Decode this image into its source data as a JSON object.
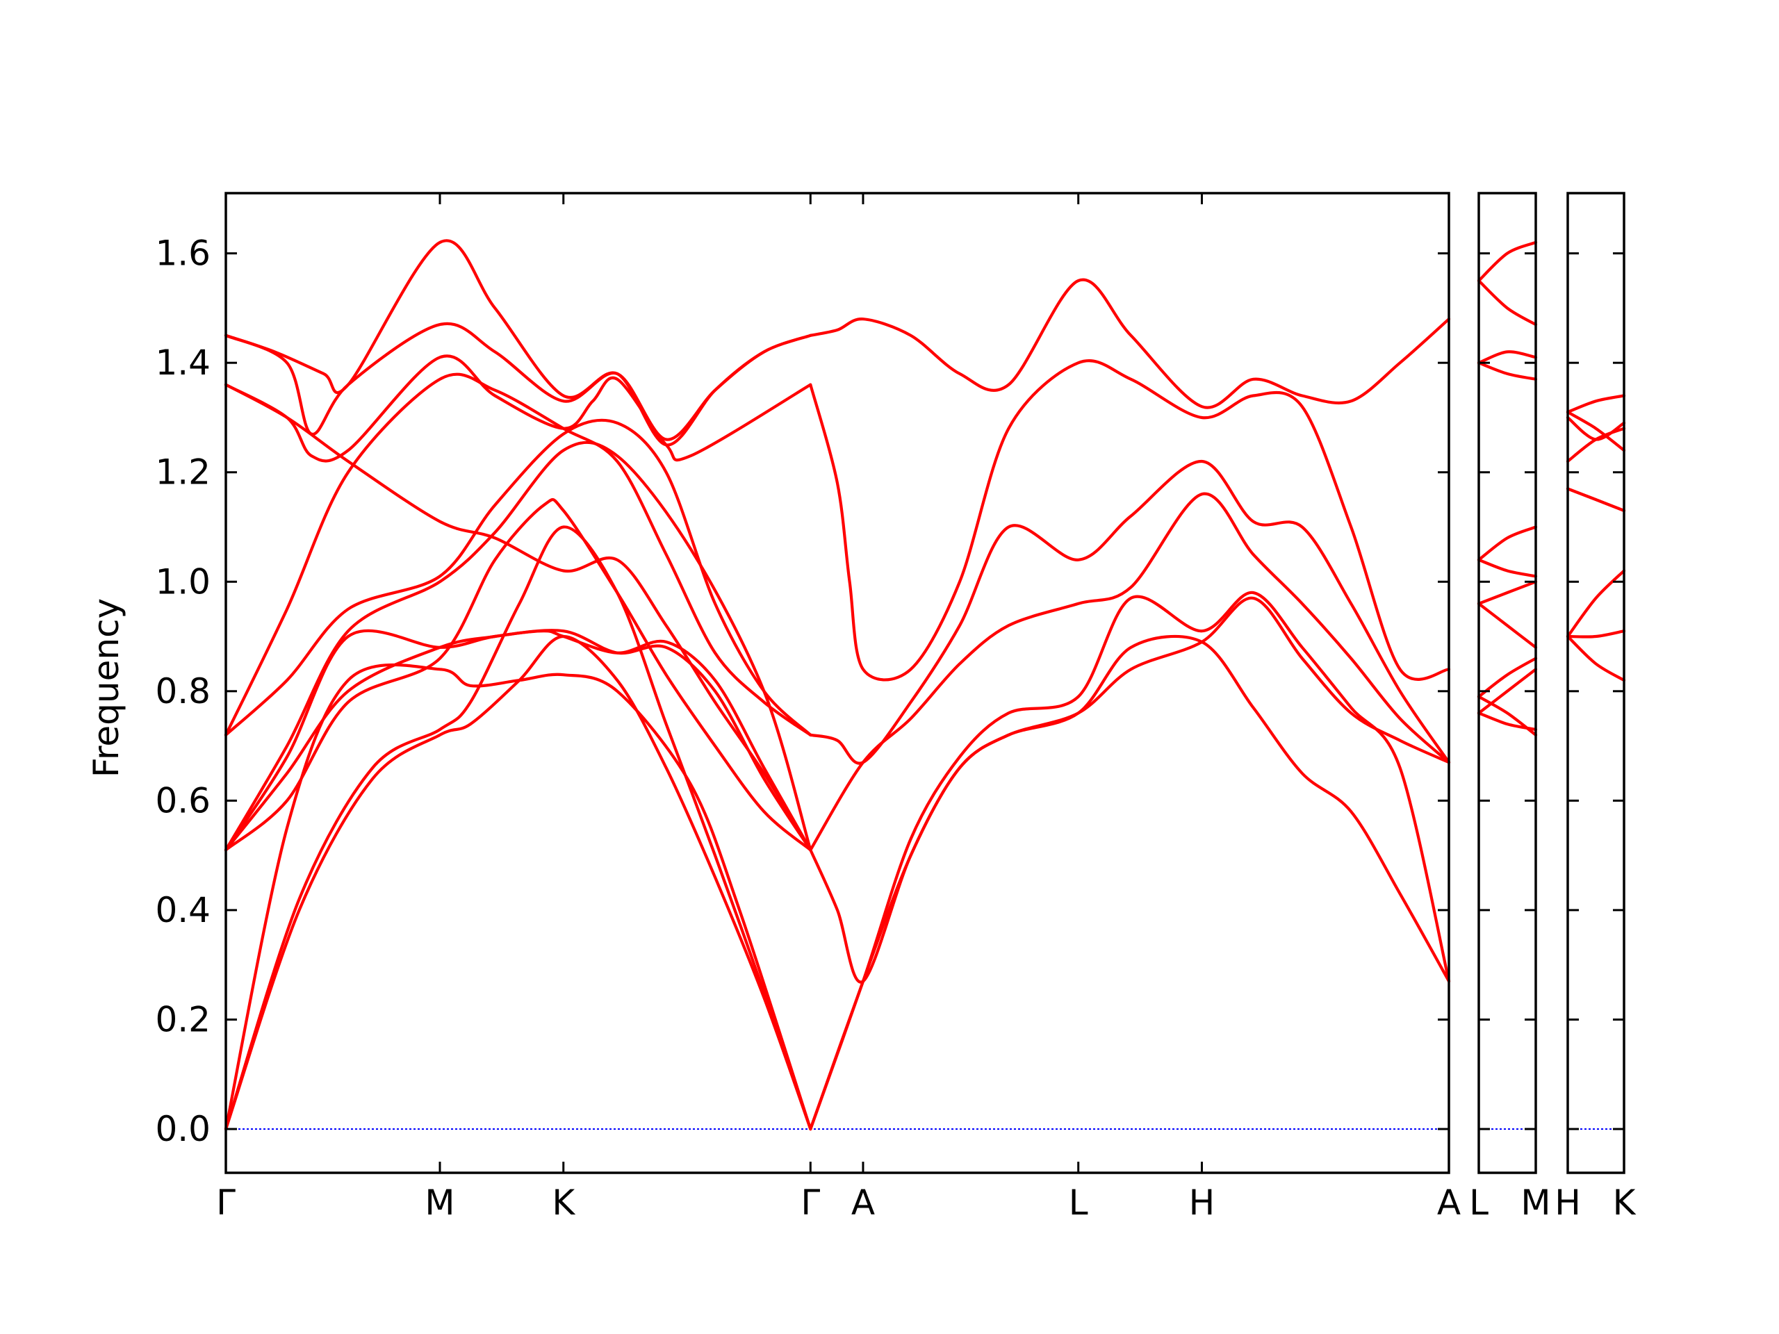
{
  "chart_data": {
    "type": "line",
    "ylabel": "Frequency",
    "xlabel": "",
    "ylim": [
      -0.08,
      1.71
    ],
    "yticks": [
      "0.0",
      "0.2",
      "0.4",
      "0.6",
      "0.8",
      "1.0",
      "1.2",
      "1.4",
      "1.6"
    ],
    "ytick_values": [
      0.0,
      0.2,
      0.4,
      0.6,
      0.8,
      1.0,
      1.2,
      1.4,
      1.6
    ],
    "grid": false,
    "colors": {
      "bands": "#ff0000",
      "zero_line": "#0000ff",
      "axes": "#000000"
    },
    "panels": [
      {
        "id": "main",
        "xlim": [
          0,
          1
        ],
        "tick_labels": [
          "Γ",
          "M",
          "K",
          "Γ",
          "A",
          "L",
          "H",
          "A"
        ],
        "tick_positions": [
          0.0,
          0.175,
          0.276,
          0.478,
          0.521,
          0.697,
          0.798,
          1.0
        ],
        "series": [
          {
            "x": [
              0,
              0.06,
              0.12,
              0.175,
              0.2,
              0.24,
              0.276,
              0.32,
              0.36,
              0.4,
              0.44,
              0.478
            ],
            "y": [
              0.0,
              0.4,
              0.64,
              0.72,
              0.74,
              0.82,
              0.9,
              0.82,
              0.66,
              0.46,
              0.24,
              0.0
            ]
          },
          {
            "x": [
              0,
              0.06,
              0.12,
              0.175,
              0.2,
              0.24,
              0.276,
              0.32,
              0.36,
              0.4,
              0.44,
              0.478
            ],
            "y": [
              0.0,
              0.42,
              0.66,
              0.73,
              0.78,
              0.96,
              1.1,
              0.98,
              0.74,
              0.5,
              0.25,
              0.0
            ]
          },
          {
            "x": [
              0,
              0.05,
              0.1,
              0.175,
              0.2,
              0.24,
              0.276,
              0.32,
              0.38,
              0.42,
              0.478
            ],
            "y": [
              0.0,
              0.55,
              0.82,
              0.84,
              0.81,
              0.82,
              0.83,
              0.8,
              0.63,
              0.4,
              0.0
            ]
          },
          {
            "x": [
              0,
              0.05,
              0.1,
              0.175,
              0.22,
              0.26,
              0.276,
              0.32,
              0.36,
              0.4,
              0.44,
              0.478
            ],
            "y": [
              0.51,
              0.6,
              0.78,
              0.86,
              1.04,
              1.14,
              1.13,
              0.98,
              0.83,
              0.7,
              0.58,
              0.51
            ]
          },
          {
            "x": [
              0,
              0.05,
              0.1,
              0.175,
              0.22,
              0.26,
              0.276,
              0.32,
              0.36,
              0.4,
              0.44,
              0.478
            ],
            "y": [
              0.51,
              0.65,
              0.8,
              0.88,
              0.9,
              0.91,
              0.9,
              0.87,
              0.89,
              0.82,
              0.66,
              0.51
            ]
          },
          {
            "x": [
              0,
              0.05,
              0.1,
              0.175,
              0.22,
              0.276,
              0.32,
              0.36,
              0.4,
              0.44,
              0.478
            ],
            "y": [
              0.51,
              0.68,
              0.9,
              0.88,
              0.9,
              0.91,
              0.87,
              0.88,
              0.8,
              0.64,
              0.51
            ]
          },
          {
            "x": [
              0,
              0.05,
              0.1,
              0.175,
              0.22,
              0.276,
              0.32,
              0.38,
              0.44,
              0.478
            ],
            "y": [
              0.51,
              0.7,
              0.91,
              1.0,
              1.09,
              1.24,
              1.23,
              1.06,
              0.8,
              0.51
            ]
          },
          {
            "x": [
              0,
              0.05,
              0.1,
              0.175,
              0.22,
              0.276,
              0.32,
              0.36,
              0.4,
              0.44,
              0.478
            ],
            "y": [
              0.72,
              0.82,
              0.95,
              1.01,
              1.14,
              1.27,
              1.29,
              1.2,
              0.96,
              0.8,
              0.72
            ]
          },
          {
            "x": [
              0,
              0.05,
              0.1,
              0.175,
              0.22,
              0.276,
              0.32,
              0.36,
              0.4,
              0.44,
              0.478
            ],
            "y": [
              0.72,
              0.95,
              1.2,
              1.37,
              1.35,
              1.28,
              1.22,
              1.05,
              0.87,
              0.78,
              0.72
            ]
          },
          {
            "x": [
              0,
              0.05,
              0.1,
              0.175,
              0.22,
              0.276,
              0.32,
              0.36,
              0.4,
              0.44,
              0.478
            ],
            "y": [
              1.36,
              1.3,
              1.22,
              1.11,
              1.08,
              1.02,
              1.04,
              0.92,
              0.78,
              0.65,
              0.51
            ]
          },
          {
            "x": [
              0,
              0.05,
              0.07,
              0.1,
              0.175,
              0.22,
              0.276,
              0.3,
              0.32,
              0.36,
              0.38,
              0.478
            ],
            "y": [
              1.36,
              1.3,
              1.23,
              1.24,
              1.41,
              1.34,
              1.28,
              1.33,
              1.37,
              1.25,
              1.23,
              1.36
            ]
          },
          {
            "x": [
              0,
              0.05,
              0.07,
              0.1,
              0.175,
              0.22,
              0.276,
              0.32,
              0.36,
              0.4,
              0.44,
              0.478
            ],
            "y": [
              1.45,
              1.4,
              1.27,
              1.36,
              1.47,
              1.42,
              1.33,
              1.38,
              1.26,
              1.35,
              1.42,
              1.45
            ]
          },
          {
            "x": [
              0,
              0.04,
              0.08,
              0.1,
              0.175,
              0.22,
              0.276,
              0.32,
              0.36,
              0.4,
              0.44,
              0.478
            ],
            "y": [
              1.45,
              1.42,
              1.38,
              1.36,
              1.62,
              1.5,
              1.34,
              1.38,
              1.25,
              1.35,
              1.42,
              1.45
            ]
          },
          {
            "x": [
              0.478,
              0.521,
              0.56,
              0.6,
              0.64,
              0.697,
              0.74,
              0.798,
              0.84,
              0.88,
              0.92,
              0.96,
              1.0
            ],
            "y": [
              0.0,
              0.27,
              0.5,
              0.66,
              0.72,
              0.76,
              0.88,
              0.89,
              0.77,
              0.65,
              0.58,
              0.43,
              0.27
            ]
          },
          {
            "x": [
              0.478,
              0.521,
              0.56,
              0.6,
              0.64,
              0.697,
              0.74,
              0.798,
              0.84,
              0.88,
              0.92,
              0.96,
              1.0
            ],
            "y": [
              0.0,
              0.27,
              0.53,
              0.68,
              0.76,
              0.79,
              0.97,
              0.91,
              0.98,
              0.88,
              0.77,
              0.66,
              0.27
            ]
          },
          {
            "x": [
              0.478,
              0.5,
              0.521,
              0.56,
              0.6,
              0.64,
              0.697,
              0.74,
              0.798,
              0.84,
              0.88,
              0.92,
              0.96,
              1.0
            ],
            "y": [
              0.51,
              0.4,
              0.27,
              0.5,
              0.66,
              0.72,
              0.76,
              0.84,
              0.89,
              0.97,
              0.86,
              0.76,
              0.71,
              0.67
            ]
          },
          {
            "x": [
              0.478,
              0.521,
              0.56,
              0.6,
              0.64,
              0.697,
              0.74,
              0.798,
              0.84,
              0.88,
              0.92,
              0.96,
              1.0
            ],
            "y": [
              0.51,
              0.67,
              0.75,
              0.85,
              0.92,
              0.96,
              0.99,
              1.16,
              1.05,
              0.96,
              0.86,
              0.75,
              0.67
            ]
          },
          {
            "x": [
              0.478,
              0.5,
              0.521,
              0.56,
              0.6,
              0.64,
              0.697,
              0.74,
              0.798,
              0.84,
              0.88,
              0.92,
              0.96,
              1.0
            ],
            "y": [
              0.72,
              0.71,
              0.67,
              0.78,
              0.92,
              1.1,
              1.04,
              1.12,
              1.22,
              1.11,
              1.1,
              0.96,
              0.8,
              0.67
            ]
          },
          {
            "x": [
              0.478,
              0.5,
              0.51,
              0.521,
              0.56,
              0.6,
              0.64,
              0.697,
              0.74,
              0.798,
              0.84,
              0.88,
              0.92,
              0.96,
              1.0
            ],
            "y": [
              1.36,
              1.18,
              1.0,
              0.84,
              0.84,
              1.0,
              1.28,
              1.4,
              1.37,
              1.3,
              1.34,
              1.32,
              1.1,
              0.84,
              0.84
            ]
          },
          {
            "x": [
              0.478,
              0.5,
              0.521,
              0.56,
              0.6,
              0.64,
              0.697,
              0.74,
              0.798,
              0.84,
              0.88,
              0.92,
              0.96,
              1.0
            ],
            "y": [
              1.45,
              1.46,
              1.48,
              1.45,
              1.38,
              1.36,
              1.55,
              1.45,
              1.32,
              1.37,
              1.34,
              1.33,
              1.4,
              1.48
            ]
          }
        ]
      },
      {
        "id": "L-M",
        "xlim": [
          0,
          1
        ],
        "tick_labels": [
          "L",
          "M"
        ],
        "tick_positions": [
          0,
          1
        ],
        "series": [
          {
            "x": [
              0,
              0.5,
              1
            ],
            "y": [
              1.55,
              1.5,
              1.47
            ]
          },
          {
            "x": [
              0,
              0.5,
              1
            ],
            "y": [
              1.55,
              1.6,
              1.62
            ]
          },
          {
            "x": [
              0,
              0.5,
              1
            ],
            "y": [
              1.4,
              1.42,
              1.41
            ]
          },
          {
            "x": [
              0,
              0.5,
              1
            ],
            "y": [
              1.4,
              1.38,
              1.37
            ]
          },
          {
            "x": [
              0,
              0.5,
              1
            ],
            "y": [
              1.04,
              1.08,
              1.1
            ]
          },
          {
            "x": [
              0,
              0.5,
              1
            ],
            "y": [
              1.04,
              1.02,
              1.01
            ]
          },
          {
            "x": [
              0,
              0.5,
              1
            ],
            "y": [
              0.96,
              0.98,
              1.0
            ]
          },
          {
            "x": [
              0,
              0.5,
              1
            ],
            "y": [
              0.96,
              0.92,
              0.88
            ]
          },
          {
            "x": [
              0,
              0.5,
              1
            ],
            "y": [
              0.79,
              0.83,
              0.86
            ]
          },
          {
            "x": [
              0,
              0.5,
              1
            ],
            "y": [
              0.79,
              0.76,
              0.72
            ]
          },
          {
            "x": [
              0,
              0.5,
              1
            ],
            "y": [
              0.76,
              0.8,
              0.84
            ]
          },
          {
            "x": [
              0,
              0.5,
              1
            ],
            "y": [
              0.76,
              0.74,
              0.73
            ]
          }
        ]
      },
      {
        "id": "H-K",
        "xlim": [
          0,
          1
        ],
        "tick_labels": [
          "H",
          "K"
        ],
        "tick_positions": [
          0,
          1
        ],
        "series": [
          {
            "x": [
              0,
              0.5,
              1
            ],
            "y": [
              1.31,
              1.33,
              1.34
            ]
          },
          {
            "x": [
              0,
              0.5,
              1
            ],
            "y": [
              1.31,
              1.28,
              1.24
            ]
          },
          {
            "x": [
              0,
              0.5,
              1
            ],
            "y": [
              1.3,
              1.26,
              1.29
            ]
          },
          {
            "x": [
              0,
              0.5,
              1
            ],
            "y": [
              1.22,
              1.26,
              1.28
            ]
          },
          {
            "x": [
              0,
              0.5,
              1
            ],
            "y": [
              1.17,
              1.15,
              1.13
            ]
          },
          {
            "x": [
              0,
              0.5,
              1
            ],
            "y": [
              1.17,
              1.15,
              1.13
            ]
          },
          {
            "x": [
              0,
              0.5,
              1
            ],
            "y": [
              0.9,
              0.97,
              1.02
            ]
          },
          {
            "x": [
              0,
              0.5,
              1
            ],
            "y": [
              0.9,
              0.85,
              0.82
            ]
          },
          {
            "x": [
              0,
              0.5,
              1
            ],
            "y": [
              0.9,
              0.9,
              0.91
            ]
          }
        ]
      }
    ]
  }
}
